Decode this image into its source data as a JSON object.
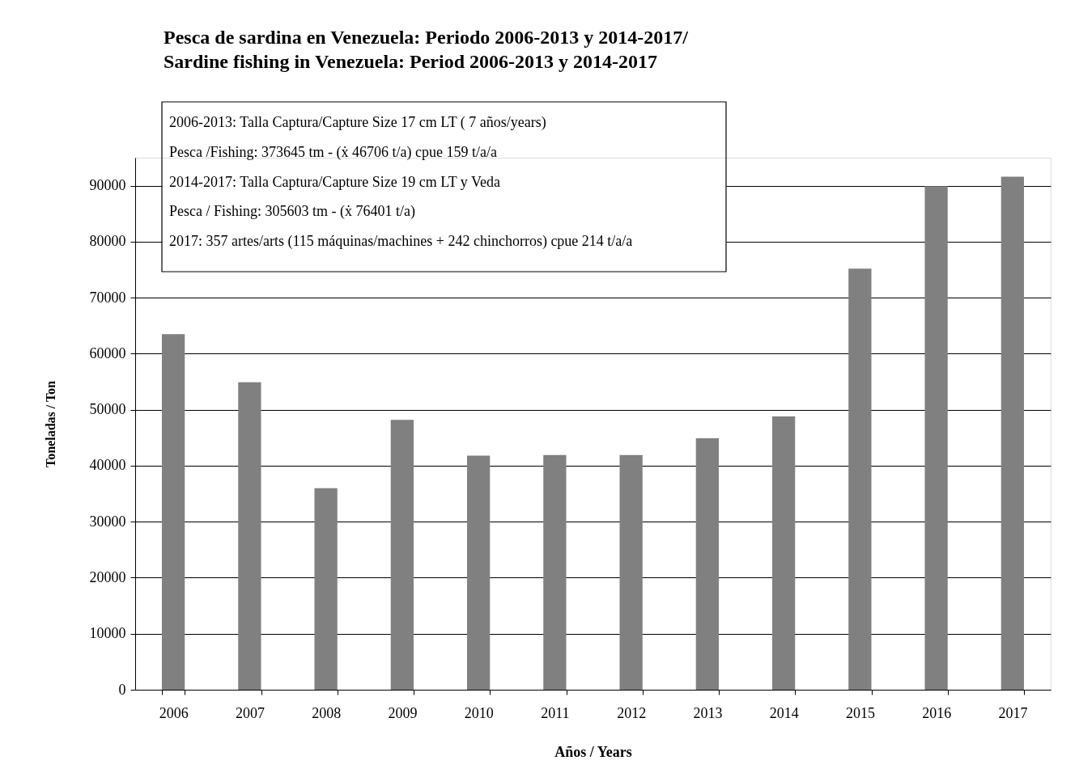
{
  "chart_data": {
    "type": "bar",
    "title": "Pesca de sardina en Venezuela: Periodo 2006-2013 y 2014-2017/\nSardine fishing in Venezuela: Period 2006-2013 y 2014-2017",
    "xlabel": "Años / Years",
    "ylabel": "Toneladas / Ton",
    "categories": [
      "2006",
      "2007",
      "2008",
      "2009",
      "2010",
      "2011",
      "2012",
      "2013",
      "2014",
      "2015",
      "2016",
      "2017"
    ],
    "series": [
      {
        "color": "#808080",
        "values": [
          63500,
          54900,
          36000,
          48200,
          41800,
          41900,
          41900,
          44900,
          48800,
          75200,
          89900,
          91600
        ]
      }
    ],
    "ylim": [
      0,
      95000
    ],
    "yticks": [
      0,
      10000,
      20000,
      30000,
      40000,
      50000,
      60000,
      70000,
      80000,
      90000
    ],
    "grid": "y",
    "annotations": [
      "2006-2013: Talla Captura/Capture Size 17 cm LT ( 7 años/years)",
      "Pesca /Fishing: 373645 tm - (ẋ  46706 t/a) cpue 159 t/a/a",
      "2014-2017: Talla Captura/Capture Size 19 cm LT y Veda",
      "Pesca / Fishing: 305603 tm - (ẋ  76401 t/a)",
      "2017: 357 artes/arts (115 máquinas/machines + 242 chinchorros) cpue 214 t/a/a"
    ]
  }
}
